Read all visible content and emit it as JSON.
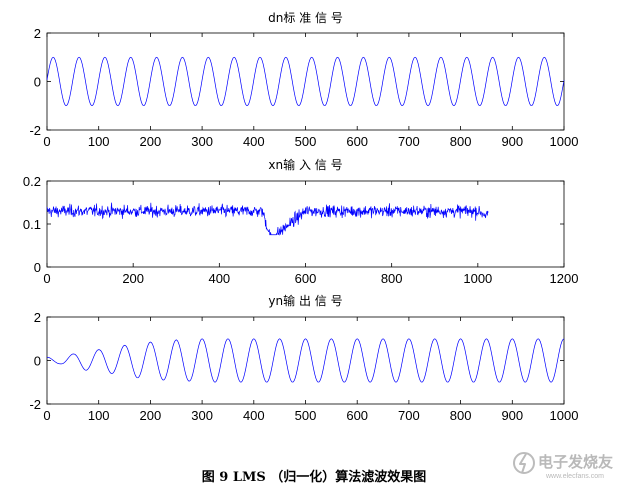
{
  "chart_data": [
    {
      "type": "line",
      "title": "dn标 准 信 号",
      "xlim": [
        0,
        1000
      ],
      "ylim": [
        -2,
        2
      ],
      "xticks": [
        0,
        100,
        200,
        300,
        400,
        500,
        600,
        700,
        800,
        900,
        1000
      ],
      "yticks": [
        -2,
        0,
        2
      ],
      "color": "#0000ff",
      "series": [
        {
          "description": "clean sinusoid, amplitude 1, period about 50 samples",
          "x": [
            0,
            12,
            25,
            37,
            50,
            62,
            75,
            87,
            100,
            112,
            125,
            137,
            150,
            162,
            175,
            187,
            200,
            212,
            225,
            237,
            250,
            262,
            275,
            287,
            300,
            312,
            325,
            337,
            350,
            362,
            375,
            387,
            400,
            412,
            425,
            437,
            450,
            462,
            475,
            487,
            500,
            512,
            525,
            537,
            550,
            562,
            575,
            587,
            600,
            612,
            625,
            637,
            650,
            662,
            675,
            687,
            700,
            712,
            725,
            737,
            750,
            762,
            775,
            787,
            800,
            812,
            825,
            837,
            850,
            862,
            875,
            887,
            900,
            912,
            925,
            937,
            950,
            962,
            975,
            987,
            1000
          ],
          "y": [
            0,
            1,
            0,
            -1,
            0,
            1,
            0,
            -1,
            0,
            1,
            0,
            -1,
            0,
            1,
            0,
            -1,
            0,
            1,
            0,
            -1,
            0,
            1,
            0,
            -1,
            0,
            1,
            0,
            -1,
            0,
            1,
            0,
            -1,
            0,
            1,
            0,
            -1,
            0,
            1,
            0,
            -1,
            0,
            1,
            0,
            -1,
            0,
            1,
            0,
            -1,
            0,
            1,
            0,
            -1,
            0,
            1,
            0,
            -1,
            0,
            1,
            0,
            -1,
            0,
            1,
            0,
            -1,
            0,
            1,
            0,
            -1,
            0,
            1,
            0,
            -1,
            0,
            1,
            0,
            -1,
            0,
            1,
            0,
            -1,
            0
          ]
        }
      ]
    },
    {
      "type": "line",
      "title": "xn输 入 信 号",
      "xlim": [
        0,
        1200
      ],
      "ylim": [
        0,
        0.2
      ],
      "xticks": [
        0,
        200,
        400,
        600,
        800,
        1000,
        1200
      ],
      "yticks": [
        0,
        0.1,
        0.2
      ],
      "color": "#0000ff",
      "series": [
        {
          "description": "noisy input signal, mean about 0.13, range about 0.07 to 0.18, length about 1024",
          "x": [
            0,
            100,
            200,
            300,
            400,
            500,
            520,
            600,
            700,
            800,
            900,
            1000,
            1024
          ],
          "y": [
            0.13,
            0.13,
            0.13,
            0.13,
            0.13,
            0.13,
            0.065,
            0.13,
            0.13,
            0.13,
            0.13,
            0.13,
            0.12
          ]
        }
      ]
    },
    {
      "type": "line",
      "title": "yn输 出 信 号",
      "xlim": [
        0,
        1000
      ],
      "ylim": [
        -2,
        2
      ],
      "xticks": [
        0,
        100,
        200,
        300,
        400,
        500,
        600,
        700,
        800,
        900,
        1000
      ],
      "yticks": [
        -2,
        0,
        2
      ],
      "color": "#0000ff",
      "series": [
        {
          "description": "LMS filter output, sinusoid period about 50 samples, amplitude growing from about 0.1 to 1 over the first 250 samples",
          "x": [
            0,
            25,
            50,
            75,
            100,
            125,
            150,
            175,
            200,
            225,
            250,
            275,
            300,
            325,
            350,
            375,
            400,
            425,
            450,
            475,
            500,
            525,
            550,
            575,
            600,
            625,
            650,
            675,
            700,
            725,
            750,
            775,
            800,
            825,
            850,
            875,
            900,
            925,
            950,
            975,
            1000
          ],
          "y": [
            0,
            -0.15,
            0.3,
            -0.45,
            0.5,
            -0.6,
            0.7,
            -0.8,
            0.85,
            -0.9,
            0.95,
            -0.95,
            1,
            -1,
            1,
            -1,
            1,
            -1,
            1,
            -1,
            1,
            -1,
            1,
            -1,
            1,
            -1,
            1,
            -1,
            1,
            -1,
            1,
            -1,
            1,
            -1,
            1,
            -1,
            1,
            -1,
            1,
            -1,
            0
          ]
        }
      ]
    }
  ],
  "caption": "图 9 LMS （归一化）算法滤波效果图",
  "watermark": {
    "text": "电子发烧友",
    "url_text": "www.elecfans.com",
    "color": "#b9b9b9"
  }
}
